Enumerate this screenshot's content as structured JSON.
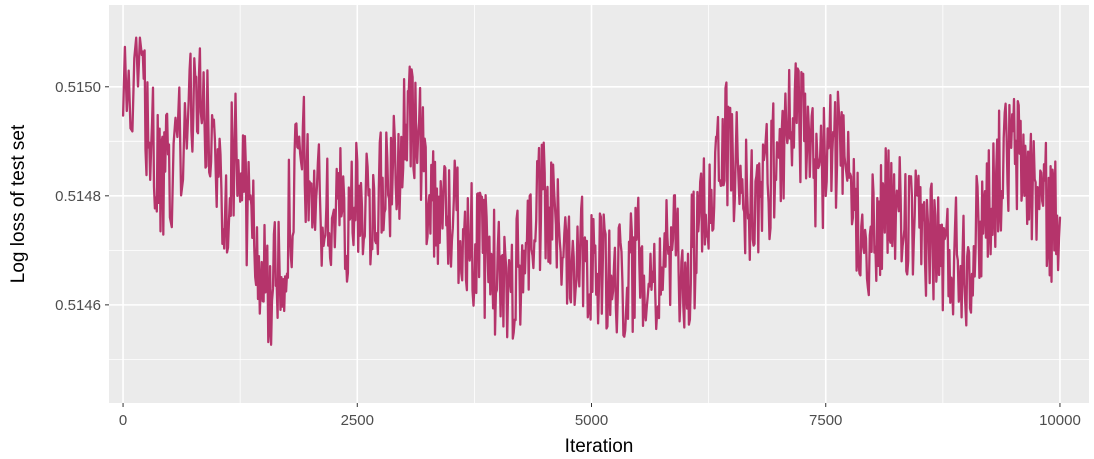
{
  "chart_data": {
    "type": "line",
    "xlabel": "Iteration",
    "ylabel": "Log loss of test set",
    "xlim": [
      -150,
      10310
    ],
    "ylim": [
      0.51442,
      0.51515
    ],
    "x_ticks": [
      0,
      2500,
      5000,
      7500,
      10000
    ],
    "x_tick_labels": [
      "0",
      "2500",
      "5000",
      "7500",
      "10000"
    ],
    "y_ticks": [
      0.5146,
      0.5148,
      0.515
    ],
    "y_tick_labels": [
      "0.5146",
      "0.5148",
      "0.5150"
    ],
    "y_minor_ticks": [
      0.5145,
      0.5147,
      0.5149
    ],
    "x_minor_ticks": [
      1250,
      3750,
      6250,
      8750
    ],
    "grid": true,
    "colors": {
      "line": "#b5346b",
      "panel": "#ebebeb",
      "grid": "#ffffff"
    },
    "series": [
      {
        "x": [
          0,
          200,
          300,
          400,
          500,
          700,
          800,
          900,
          1000,
          1100,
          1200,
          1300,
          1400,
          1500,
          1600,
          1700,
          1800,
          1900,
          2000,
          2100,
          2200,
          2300,
          2400,
          2500,
          2600,
          2700,
          2800,
          2900,
          3000,
          3100,
          3200,
          3300,
          3400,
          3500,
          3600,
          3700,
          3800,
          3900,
          4000,
          4100,
          4200,
          4300,
          4400,
          4500,
          4600,
          4700,
          4800,
          4900,
          5000,
          5100,
          5200,
          5300,
          5400,
          5500,
          5600,
          5700,
          5800,
          5900,
          6000,
          6100,
          6200,
          6300,
          6400,
          6500,
          6600,
          6700,
          6800,
          6900,
          7000,
          7100,
          7200,
          7300,
          7400,
          7500,
          7600,
          7700,
          7800,
          7900,
          8000,
          8100,
          8200,
          8300,
          8400,
          8500,
          8600,
          8700,
          8800,
          8900,
          9000,
          9100,
          9200,
          9300,
          9400,
          9500,
          9600,
          9700,
          9800,
          9900,
          10000
        ],
        "values": [
          0.51495,
          0.515,
          0.5149,
          0.5148,
          0.51485,
          0.51495,
          0.515,
          0.51492,
          0.51485,
          0.5148,
          0.5149,
          0.5148,
          0.51472,
          0.51465,
          0.51462,
          0.51468,
          0.51478,
          0.51488,
          0.51482,
          0.51478,
          0.51475,
          0.51478,
          0.51476,
          0.51478,
          0.5148,
          0.51478,
          0.51482,
          0.51485,
          0.5149,
          0.51495,
          0.51485,
          0.5148,
          0.51478,
          0.51476,
          0.51475,
          0.51472,
          0.5147,
          0.51468,
          0.51465,
          0.51463,
          0.51466,
          0.5147,
          0.51476,
          0.51478,
          0.51475,
          0.51472,
          0.5147,
          0.51472,
          0.51468,
          0.51466,
          0.51465,
          0.51464,
          0.51466,
          0.51468,
          0.51468,
          0.51466,
          0.5147,
          0.51468,
          0.51465,
          0.5147,
          0.51476,
          0.51484,
          0.5149,
          0.51488,
          0.51482,
          0.51478,
          0.5148,
          0.51484,
          0.51488,
          0.51494,
          0.51496,
          0.51488,
          0.51484,
          0.51486,
          0.5149,
          0.51482,
          0.51478,
          0.51475,
          0.51472,
          0.51476,
          0.51478,
          0.51476,
          0.51474,
          0.51472,
          0.51474,
          0.5147,
          0.51468,
          0.5147,
          0.51468,
          0.51472,
          0.51478,
          0.51482,
          0.51486,
          0.51488,
          0.51486,
          0.51482,
          0.5148,
          0.51476,
          0.51476
        ]
      }
    ]
  }
}
